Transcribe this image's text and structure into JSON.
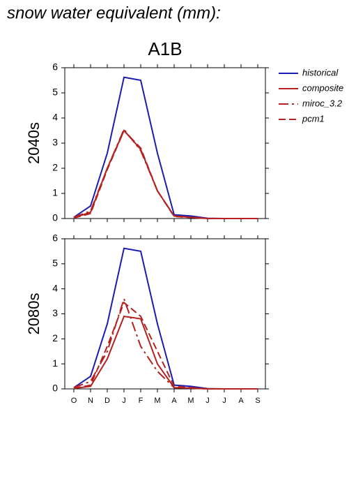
{
  "chart_data": [
    {
      "type": "line",
      "title": "snow water equivalent (mm):",
      "subtitle": "A1B",
      "ylabel": "2040s",
      "categories": [
        "O",
        "N",
        "D",
        "J",
        "F",
        "M",
        "A",
        "M",
        "J",
        "J",
        "A",
        "S"
      ],
      "ylim": [
        0,
        6
      ],
      "yticks": [
        0,
        1,
        2,
        3,
        4,
        5,
        6
      ],
      "series": [
        {
          "name": "historical",
          "color": "#1c1cb0",
          "dash": "solid",
          "values": [
            0.05,
            0.5,
            2.6,
            5.62,
            5.5,
            2.6,
            0.15,
            0.1,
            0.01,
            0,
            0,
            0
          ]
        },
        {
          "name": "composite",
          "color": "#b52020",
          "dash": "solid",
          "values": [
            0.03,
            0.25,
            2.0,
            3.5,
            2.75,
            1.1,
            0.1,
            0.05,
            0,
            0,
            0,
            0
          ]
        },
        {
          "name": "miroc_3.2",
          "color": "#b52020",
          "dash": "dashdot",
          "values": [
            0.05,
            0.3,
            2.0,
            3.55,
            2.7,
            1.1,
            0.1,
            0.05,
            0,
            0,
            0,
            0
          ]
        },
        {
          "name": "pcm1",
          "color": "#b52020",
          "dash": "dash",
          "values": [
            0.02,
            0.2,
            1.95,
            3.5,
            2.8,
            1.1,
            0.08,
            0.04,
            0,
            0,
            0,
            0
          ]
        }
      ]
    },
    {
      "type": "line",
      "ylabel": "2080s",
      "categories": [
        "O",
        "N",
        "D",
        "J",
        "F",
        "M",
        "A",
        "M",
        "J",
        "J",
        "A",
        "S"
      ],
      "ylim": [
        0,
        6
      ],
      "yticks": [
        0,
        1,
        2,
        3,
        4,
        5,
        6
      ],
      "series": [
        {
          "name": "historical",
          "color": "#1c1cb0",
          "dash": "solid",
          "values": [
            0.05,
            0.5,
            2.6,
            5.62,
            5.5,
            2.6,
            0.15,
            0.1,
            0.01,
            0,
            0,
            0
          ]
        },
        {
          "name": "composite",
          "color": "#b52020",
          "dash": "solid",
          "values": [
            0.02,
            0.1,
            1.2,
            2.9,
            2.8,
            1.0,
            0.05,
            0.03,
            0,
            0,
            0,
            0
          ]
        },
        {
          "name": "miroc_3.2",
          "color": "#b52020",
          "dash": "dashdot",
          "values": [
            0.05,
            0.3,
            1.5,
            3.6,
            1.7,
            0.7,
            0.05,
            0.03,
            0,
            0,
            0,
            0
          ]
        },
        {
          "name": "pcm1",
          "color": "#b52020",
          "dash": "dash",
          "values": [
            0.02,
            0.15,
            1.7,
            3.45,
            2.9,
            1.5,
            0.1,
            0.05,
            0,
            0,
            0,
            0
          ]
        }
      ]
    }
  ]
}
